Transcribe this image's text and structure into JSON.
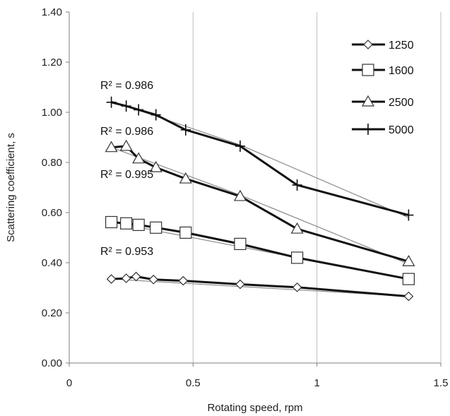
{
  "chart_data": {
    "type": "scatter",
    "title": "",
    "xlabel": "Rotating speed, rpm",
    "ylabel": "Scattering coefficient, s",
    "xlim": [
      0,
      1.5
    ],
    "ylim": [
      0,
      1.4
    ],
    "x_ticks": [
      0,
      0.5,
      1,
      1.5
    ],
    "x_tick_labels": [
      "0",
      "0.5",
      "1",
      "1.5"
    ],
    "y_ticks": [
      0,
      0.2,
      0.4,
      0.6,
      0.8,
      1.0,
      1.2,
      1.4
    ],
    "y_tick_labels": [
      "0.00",
      "0.20",
      "0.40",
      "0.60",
      "0.80",
      "1.00",
      "1.20",
      "1.40"
    ],
    "grid": "vertical",
    "legend_position": "top-right",
    "series": [
      {
        "name": "1250",
        "marker": "diamond",
        "x": [
          0.17,
          0.23,
          0.27,
          0.34,
          0.46,
          0.69,
          0.92,
          1.37
        ],
        "y": [
          0.335,
          0.338,
          0.345,
          0.333,
          0.328,
          0.314,
          0.302,
          0.266
        ],
        "fit": [
          [
            0.17,
            0.335
          ],
          [
            1.37,
            0.266
          ]
        ],
        "r2_label": "R² = 0.953"
      },
      {
        "name": "1600",
        "marker": "square",
        "x": [
          0.17,
          0.23,
          0.28,
          0.35,
          0.47,
          0.69,
          0.92,
          1.37
        ],
        "y": [
          0.562,
          0.557,
          0.551,
          0.54,
          0.52,
          0.475,
          0.42,
          0.335
        ],
        "fit": [
          [
            0.17,
            0.562
          ],
          [
            1.37,
            0.335
          ]
        ],
        "r2_label": "R² = 0.995"
      },
      {
        "name": "2500",
        "marker": "triangle",
        "x": [
          0.17,
          0.23,
          0.28,
          0.35,
          0.47,
          0.69,
          0.92,
          1.37
        ],
        "y": [
          0.86,
          0.865,
          0.815,
          0.78,
          0.735,
          0.665,
          0.535,
          0.405
        ],
        "fit": [
          [
            0.17,
            0.86
          ],
          [
            0.69,
            0.67
          ],
          [
            1.37,
            0.395
          ]
        ],
        "r2_label": "R² = 0.986"
      },
      {
        "name": "5000",
        "marker": "plus",
        "x": [
          0.17,
          0.23,
          0.28,
          0.35,
          0.47,
          0.69,
          0.92,
          1.37
        ],
        "y": [
          1.04,
          1.025,
          1.01,
          0.99,
          0.93,
          0.865,
          0.71,
          0.59
        ],
        "fit": [
          [
            0.17,
            1.045
          ],
          [
            0.69,
            0.87
          ],
          [
            1.37,
            0.58
          ]
        ],
        "r2_label": "R² = 0.986"
      }
    ]
  }
}
